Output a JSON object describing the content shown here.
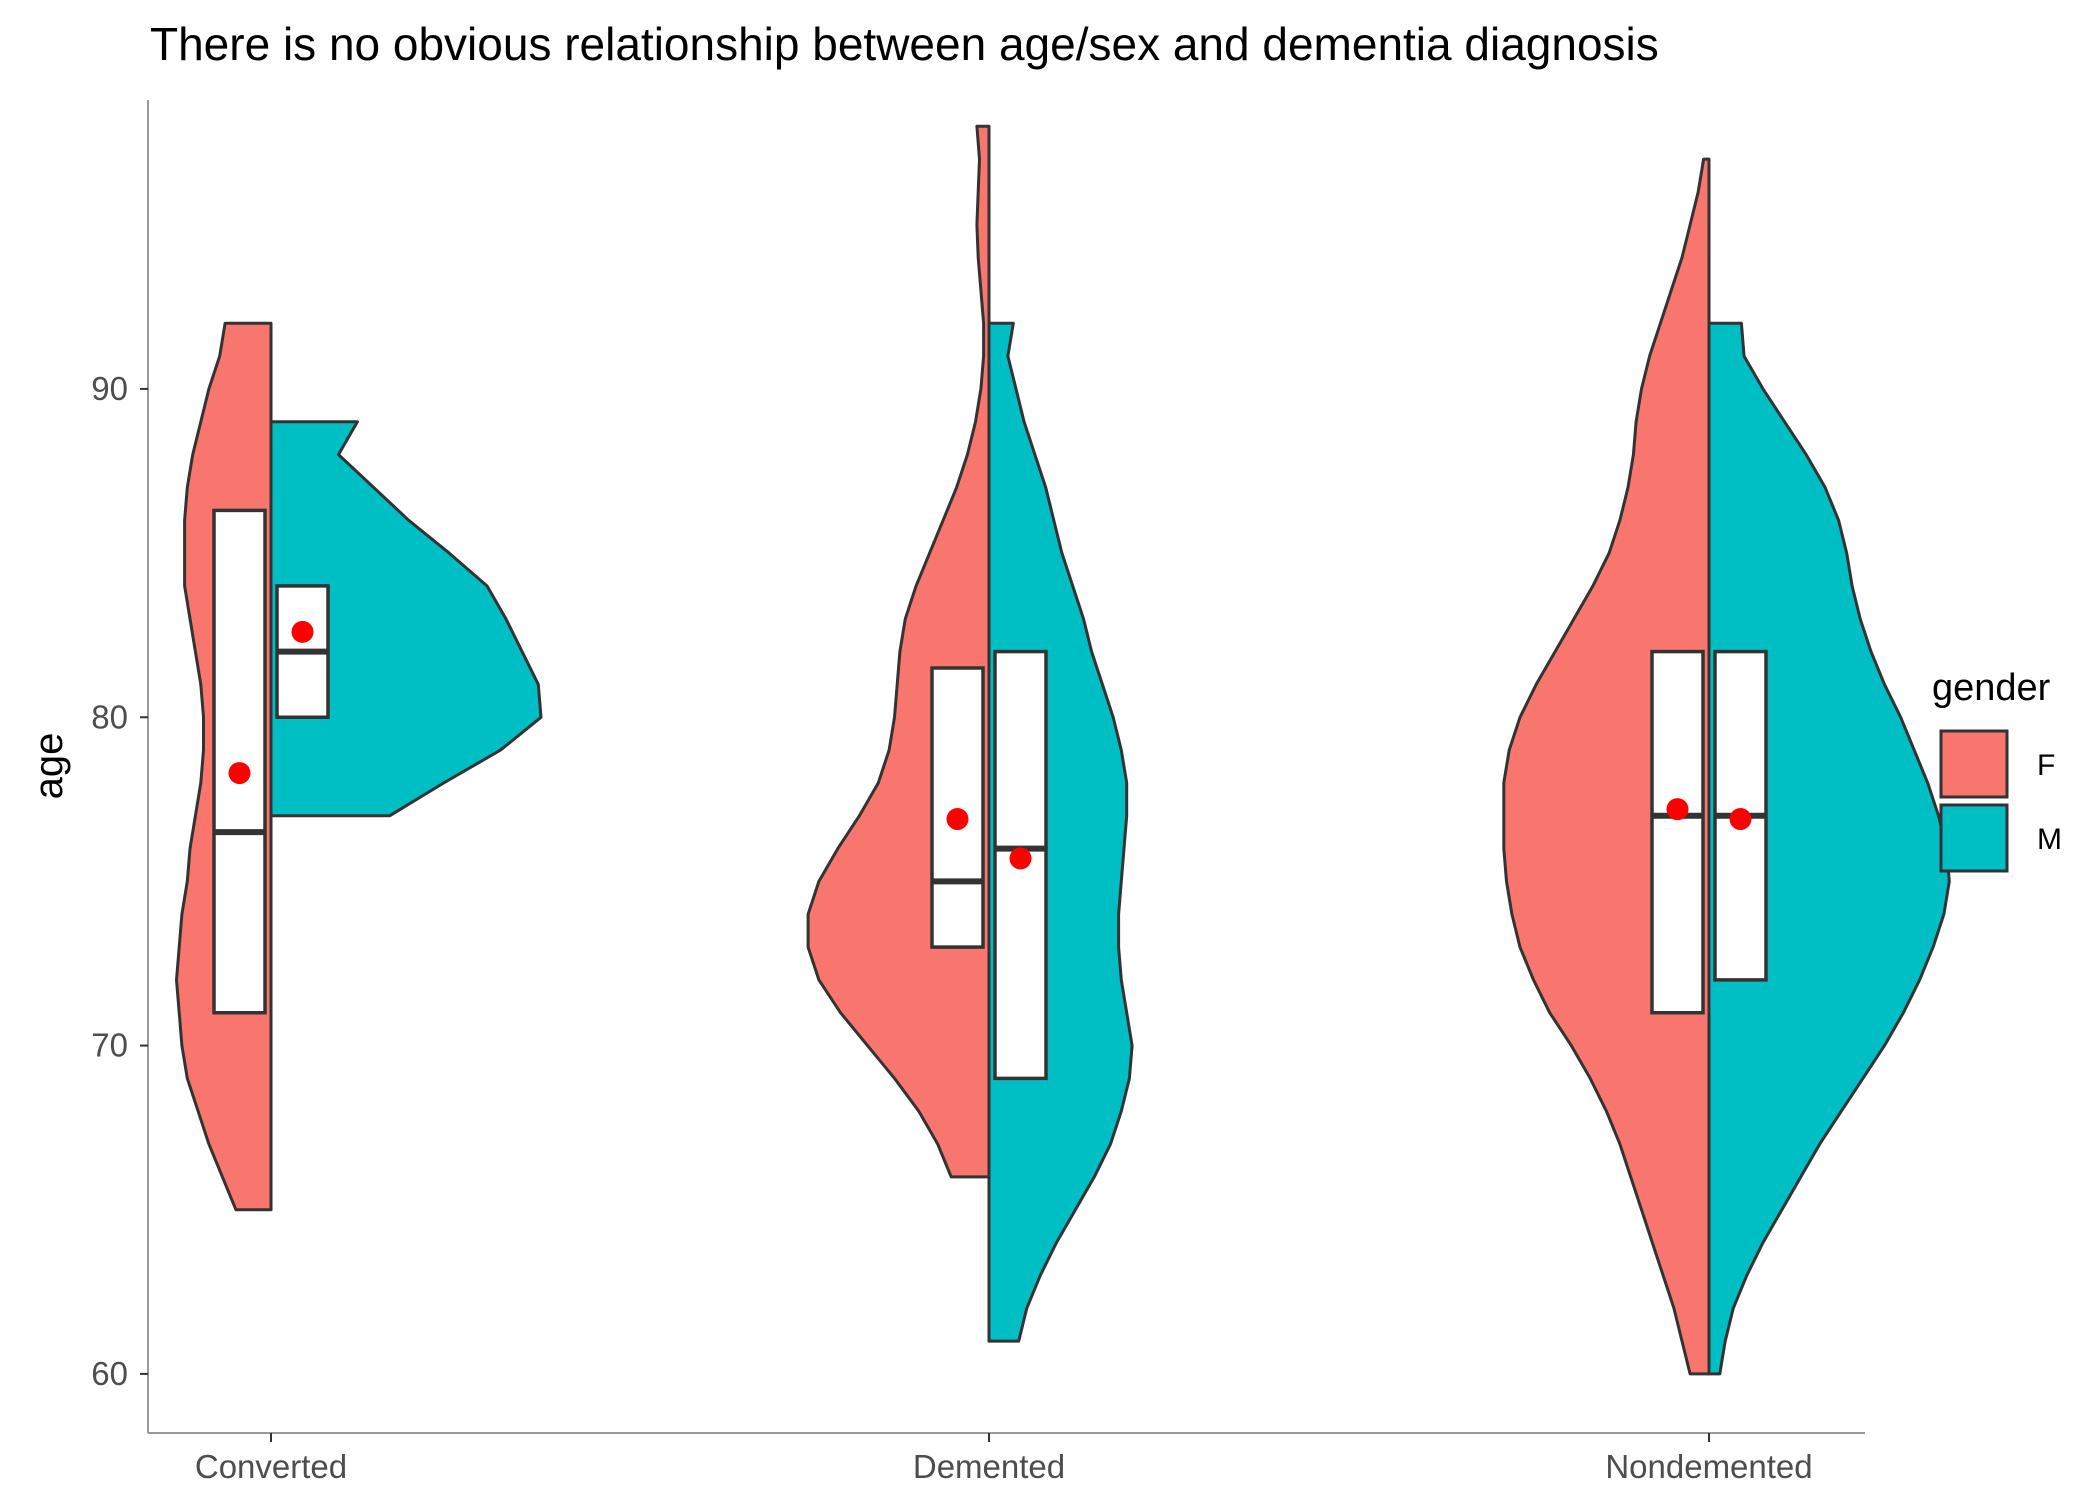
{
  "chart_data": {
    "type": "violin",
    "title": "There is no obvious relationship between age/sex and dementia diagnosis",
    "xlabel": "",
    "ylabel": "age",
    "ylim": [
      58.2,
      98.8
    ],
    "yticks": [
      60,
      70,
      80,
      90
    ],
    "categories": [
      "Converted",
      "Demented",
      "Nondemented"
    ],
    "grid": false,
    "legend": {
      "title": "gender",
      "position": "right",
      "entries": [
        {
          "label": "F",
          "color": "#F8766D"
        },
        {
          "label": "M",
          "color": "#00BFC4"
        }
      ]
    },
    "mean_marker_color": "#FF0000",
    "series": [
      {
        "name": "F",
        "color": "#F8766D",
        "side": "left",
        "groups": [
          {
            "category": "Converted",
            "range": [
              65,
              92
            ],
            "box": {
              "q1": 71,
              "median": 76.5,
              "q3": 86.3
            },
            "mean": 78.3,
            "density": [
              [
                65,
                0.13
              ],
              [
                66,
                0.18
              ],
              [
                67,
                0.23
              ],
              [
                68,
                0.27
              ],
              [
                69,
                0.31
              ],
              [
                70,
                0.33
              ],
              [
                71,
                0.34
              ],
              [
                72,
                0.35
              ],
              [
                73,
                0.34
              ],
              [
                74,
                0.33
              ],
              [
                75,
                0.31
              ],
              [
                76,
                0.3
              ],
              [
                77,
                0.28
              ],
              [
                78,
                0.26
              ],
              [
                79,
                0.25
              ],
              [
                80,
                0.25
              ],
              [
                81,
                0.26
              ],
              [
                82,
                0.28
              ],
              [
                83,
                0.3
              ],
              [
                84,
                0.32
              ],
              [
                85,
                0.32
              ],
              [
                86,
                0.32
              ],
              [
                87,
                0.31
              ],
              [
                88,
                0.29
              ],
              [
                89,
                0.26
              ],
              [
                90,
                0.23
              ],
              [
                91,
                0.19
              ],
              [
                92,
                0.17
              ]
            ]
          },
          {
            "category": "Demented",
            "range": [
              66,
              98
            ],
            "box": {
              "q1": 73,
              "median": 75,
              "q3": 81.5
            },
            "mean": 76.9,
            "density": [
              [
                66,
                0.14
              ],
              [
                67,
                0.19
              ],
              [
                68,
                0.26
              ],
              [
                69,
                0.35
              ],
              [
                70,
                0.45
              ],
              [
                71,
                0.55
              ],
              [
                72,
                0.63
              ],
              [
                73,
                0.67
              ],
              [
                74,
                0.67
              ],
              [
                75,
                0.63
              ],
              [
                76,
                0.56
              ],
              [
                77,
                0.48
              ],
              [
                78,
                0.41
              ],
              [
                79,
                0.37
              ],
              [
                80,
                0.35
              ],
              [
                81,
                0.34
              ],
              [
                82,
                0.33
              ],
              [
                83,
                0.31
              ],
              [
                84,
                0.27
              ],
              [
                85,
                0.22
              ],
              [
                86,
                0.17
              ],
              [
                87,
                0.12
              ],
              [
                88,
                0.08
              ],
              [
                89,
                0.05
              ],
              [
                90,
                0.03
              ],
              [
                91,
                0.02
              ],
              [
                92,
                0.02
              ],
              [
                93,
                0.03
              ],
              [
                94,
                0.04
              ],
              [
                95,
                0.045
              ],
              [
                96,
                0.04
              ],
              [
                97,
                0.035
              ],
              [
                98,
                0.045
              ]
            ]
          },
          {
            "category": "Nondemented",
            "range": [
              60,
              97
            ],
            "box": {
              "q1": 71,
              "median": 77,
              "q3": 82
            },
            "mean": 77.2,
            "density": [
              [
                60,
                0.07
              ],
              [
                61,
                0.1
              ],
              [
                62,
                0.13
              ],
              [
                63,
                0.17
              ],
              [
                64,
                0.21
              ],
              [
                65,
                0.25
              ],
              [
                66,
                0.29
              ],
              [
                67,
                0.33
              ],
              [
                68,
                0.38
              ],
              [
                69,
                0.44
              ],
              [
                70,
                0.51
              ],
              [
                71,
                0.59
              ],
              [
                72,
                0.65
              ],
              [
                73,
                0.7
              ],
              [
                74,
                0.73
              ],
              [
                75,
                0.75
              ],
              [
                76,
                0.76
              ],
              [
                77,
                0.76
              ],
              [
                78,
                0.76
              ],
              [
                79,
                0.74
              ],
              [
                80,
                0.7
              ],
              [
                81,
                0.64
              ],
              [
                82,
                0.57
              ],
              [
                83,
                0.5
              ],
              [
                84,
                0.43
              ],
              [
                85,
                0.37
              ],
              [
                86,
                0.33
              ],
              [
                87,
                0.3
              ],
              [
                88,
                0.28
              ],
              [
                89,
                0.27
              ],
              [
                90,
                0.25
              ],
              [
                91,
                0.22
              ],
              [
                92,
                0.18
              ],
              [
                93,
                0.14
              ],
              [
                94,
                0.1
              ],
              [
                95,
                0.07
              ],
              [
                96,
                0.04
              ],
              [
                97,
                0.02
              ]
            ]
          }
        ]
      },
      {
        "name": "M",
        "color": "#00BFC4",
        "side": "right",
        "groups": [
          {
            "category": "Converted",
            "range": [
              77,
              89
            ],
            "box": {
              "q1": 80,
              "median": 82,
              "q3": 84
            },
            "mean": 82.6,
            "density": [
              [
                77,
                0.44
              ],
              [
                78,
                0.64
              ],
              [
                79,
                0.85
              ],
              [
                80,
                1.0
              ],
              [
                81,
                0.99
              ],
              [
                82,
                0.93
              ],
              [
                83,
                0.87
              ],
              [
                84,
                0.8
              ],
              [
                85,
                0.66
              ],
              [
                86,
                0.51
              ],
              [
                87,
                0.38
              ],
              [
                88,
                0.25
              ],
              [
                89,
                0.32
              ]
            ]
          },
          {
            "category": "Demented",
            "range": [
              61,
              92
            ],
            "box": {
              "q1": 69,
              "median": 76,
              "q3": 82
            },
            "mean": 75.7,
            "density": [
              [
                61,
                0.11
              ],
              [
                62,
                0.14
              ],
              [
                63,
                0.19
              ],
              [
                64,
                0.25
              ],
              [
                65,
                0.32
              ],
              [
                66,
                0.39
              ],
              [
                67,
                0.45
              ],
              [
                68,
                0.49
              ],
              [
                69,
                0.52
              ],
              [
                70,
                0.53
              ],
              [
                71,
                0.51
              ],
              [
                72,
                0.49
              ],
              [
                73,
                0.48
              ],
              [
                74,
                0.48
              ],
              [
                75,
                0.49
              ],
              [
                76,
                0.5
              ],
              [
                77,
                0.51
              ],
              [
                78,
                0.51
              ],
              [
                79,
                0.49
              ],
              [
                80,
                0.46
              ],
              [
                81,
                0.42
              ],
              [
                82,
                0.38
              ],
              [
                83,
                0.35
              ],
              [
                84,
                0.31
              ],
              [
                85,
                0.27
              ],
              [
                86,
                0.24
              ],
              [
                87,
                0.21
              ],
              [
                88,
                0.17
              ],
              [
                89,
                0.13
              ],
              [
                90,
                0.1
              ],
              [
                91,
                0.07
              ],
              [
                92,
                0.09
              ]
            ]
          },
          {
            "category": "Nondemented",
            "range": [
              60,
              92
            ],
            "box": {
              "q1": 72,
              "median": 77,
              "q3": 82
            },
            "mean": 76.9,
            "density": [
              [
                60,
                0.04
              ],
              [
                61,
                0.06
              ],
              [
                62,
                0.09
              ],
              [
                63,
                0.14
              ],
              [
                64,
                0.2
              ],
              [
                65,
                0.27
              ],
              [
                66,
                0.34
              ],
              [
                67,
                0.41
              ],
              [
                68,
                0.49
              ],
              [
                69,
                0.57
              ],
              [
                70,
                0.65
              ],
              [
                71,
                0.72
              ],
              [
                72,
                0.78
              ],
              [
                73,
                0.83
              ],
              [
                74,
                0.87
              ],
              [
                75,
                0.89
              ],
              [
                76,
                0.88
              ],
              [
                77,
                0.85
              ],
              [
                78,
                0.81
              ],
              [
                79,
                0.76
              ],
              [
                80,
                0.71
              ],
              [
                81,
                0.65
              ],
              [
                82,
                0.6
              ],
              [
                83,
                0.56
              ],
              [
                84,
                0.53
              ],
              [
                85,
                0.51
              ],
              [
                86,
                0.48
              ],
              [
                87,
                0.43
              ],
              [
                88,
                0.36
              ],
              [
                89,
                0.28
              ],
              [
                90,
                0.2
              ],
              [
                91,
                0.13
              ],
              [
                92,
                0.12
              ]
            ]
          }
        ]
      }
    ]
  }
}
